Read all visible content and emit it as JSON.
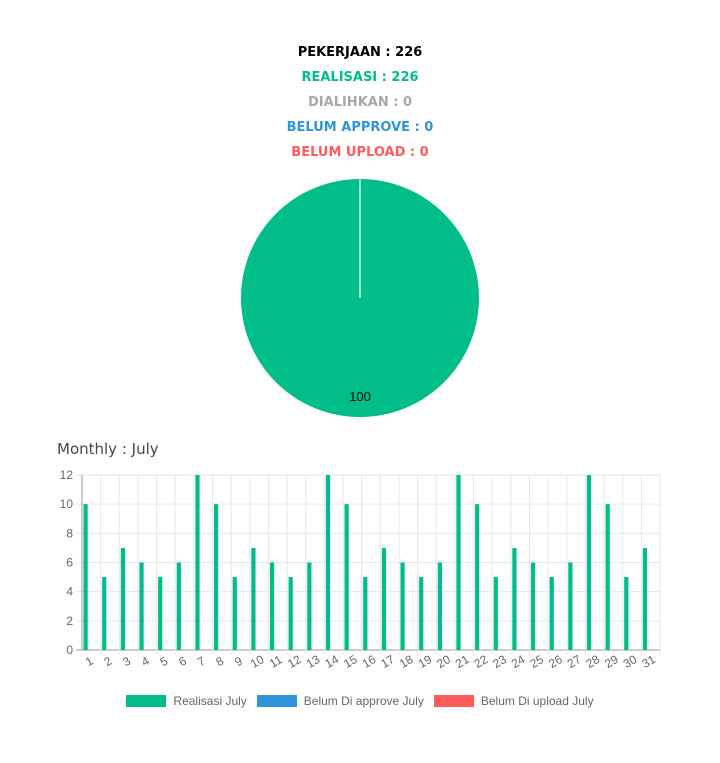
{
  "header": {
    "pekerjaan": "PEKERJAAN : 226",
    "realisasi": "REALISASI : 226",
    "dialihkan": "DIALIHKAN : 0",
    "belum_approve": "BELUM APPROVE : 0",
    "belum_upload": "BELUM UPLOAD : 0"
  },
  "colors": {
    "black": "#000000",
    "green": "#00bd8a",
    "gray": "#a8a8a8",
    "blue": "#2e96d8",
    "red": "#ff5b5b"
  },
  "monthly_title": "Monthly : July",
  "chart_data": [
    {
      "type": "pie",
      "slices": [
        {
          "label": "Realisasi",
          "value": 100,
          "color": "#00bd8a"
        }
      ],
      "data_label": "100"
    },
    {
      "type": "bar",
      "categories": [
        "1",
        "2",
        "3",
        "4",
        "5",
        "6",
        "7",
        "8",
        "9",
        "10",
        "11",
        "12",
        "13",
        "14",
        "15",
        "16",
        "17",
        "18",
        "19",
        "20",
        "21",
        "22",
        "23",
        "24",
        "25",
        "26",
        "27",
        "28",
        "29",
        "30",
        "31"
      ],
      "series": [
        {
          "name": "Realisasi July",
          "color": "#00bd8a",
          "values": [
            10,
            5,
            7,
            6,
            5,
            6,
            12,
            10,
            5,
            7,
            6,
            5,
            6,
            12,
            10,
            5,
            7,
            6,
            5,
            6,
            12,
            10,
            5,
            7,
            6,
            5,
            6,
            12,
            10,
            5,
            7
          ]
        },
        {
          "name": "Belum Di approve July",
          "color": "#2e96d8",
          "values": [
            0,
            0,
            0,
            0,
            0,
            0,
            0,
            0,
            0,
            0,
            0,
            0,
            0,
            0,
            0,
            0,
            0,
            0,
            0,
            0,
            0,
            0,
            0,
            0,
            0,
            0,
            0,
            0,
            0,
            0,
            0
          ]
        },
        {
          "name": "Belum Di upload July",
          "color": "#ff5b5b",
          "values": [
            0,
            0,
            0,
            0,
            0,
            0,
            0,
            0,
            0,
            0,
            0,
            0,
            0,
            0,
            0,
            0,
            0,
            0,
            0,
            0,
            0,
            0,
            0,
            0,
            0,
            0,
            0,
            0,
            0,
            0,
            0
          ]
        }
      ],
      "yticks": [
        "0",
        "2",
        "4",
        "6",
        "8",
        "10",
        "12"
      ],
      "ylim": [
        0,
        12
      ],
      "grid": true,
      "legend_position": "bottom"
    }
  ]
}
